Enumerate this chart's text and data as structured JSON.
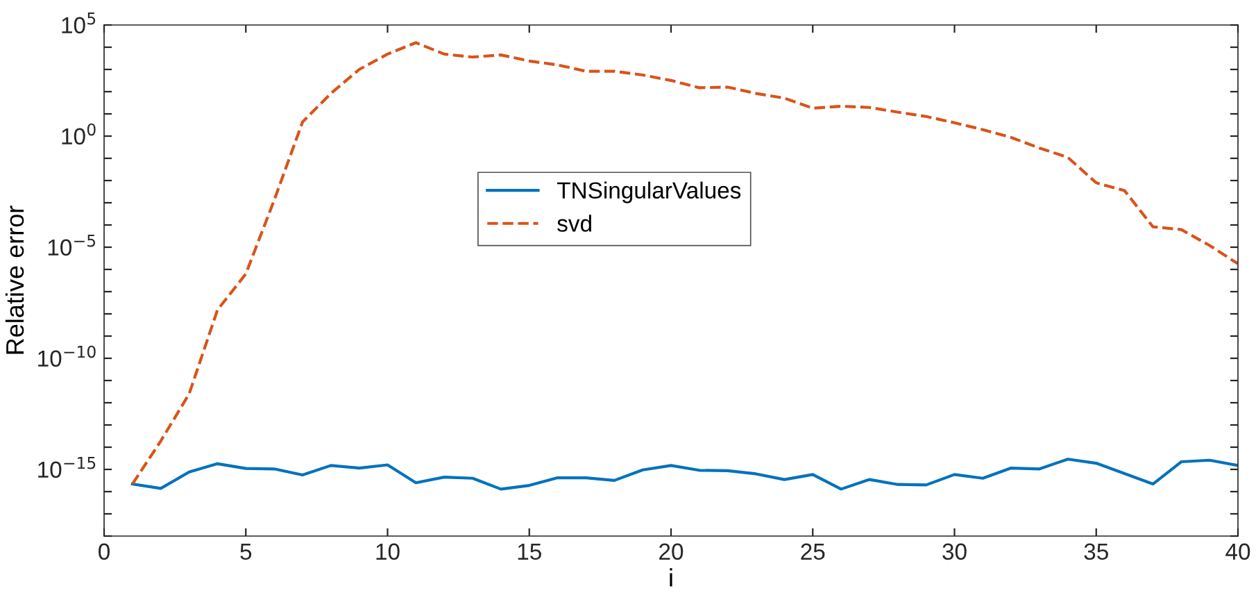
{
  "chart_data": {
    "type": "line",
    "xlabel": "i",
    "ylabel": "Relative error",
    "log": "y",
    "x": [
      1,
      2,
      3,
      4,
      5,
      6,
      7,
      8,
      9,
      10,
      11,
      12,
      13,
      14,
      15,
      16,
      17,
      18,
      19,
      20,
      21,
      22,
      23,
      24,
      25,
      26,
      27,
      28,
      29,
      30,
      31,
      32,
      33,
      34,
      35,
      36,
      37,
      38,
      39,
      40
    ],
    "series": [
      {
        "name": "TNSingularValues",
        "color": "#0072bd",
        "line_style": "solid",
        "values": [
          2.2e-16,
          1.4e-16,
          7.6e-16,
          1.8e-15,
          1.1e-15,
          1.05e-15,
          5.6e-16,
          1.5e-15,
          1.15e-15,
          1.6e-15,
          2.5e-16,
          4.5e-16,
          4e-16,
          1.3e-16,
          1.9e-16,
          4.2e-16,
          4.2e-16,
          3.2e-16,
          9.5e-16,
          1.5e-15,
          9.1e-16,
          8.7e-16,
          6.3e-16,
          3.5e-16,
          5.9e-16,
          1.3e-16,
          3.5e-16,
          2.1e-16,
          2e-16,
          5.9e-16,
          4e-16,
          1.15e-15,
          1.05e-15,
          2.9e-15,
          1.9e-15,
          6.5e-16,
          2.2e-16,
          2.2e-15,
          2.6e-15,
          1.5e-15
        ]
      },
      {
        "name": "svd",
        "color": "#d95319",
        "line_style": "dashed",
        "values": [
          2.2e-16,
          1.9e-14,
          2.5e-12,
          1.5e-08,
          6.3e-07,
          0.0013,
          4.3,
          83,
          1000,
          4900,
          16000,
          4900,
          3600,
          4500,
          2400,
          1600,
          830,
          830,
          560,
          320,
          150,
          160,
          83,
          51,
          18,
          22,
          19.5,
          12,
          7.6,
          4.0,
          1.95,
          0.87,
          0.29,
          0.11,
          0.0079,
          0.0035,
          8.3e-05,
          6.2e-05,
          1.2e-05,
          1.8e-06
        ]
      }
    ],
    "xlim": [
      0,
      40
    ],
    "xticks": [
      0,
      5,
      10,
      15,
      20,
      25,
      30,
      35,
      40
    ],
    "ylim": [
      1e-18,
      100000.0
    ],
    "yticks": [
      {
        "value": 1e-18,
        "label": null
      },
      {
        "value": 1e-17,
        "label": null
      },
      {
        "value": 1e-16,
        "label": null
      },
      {
        "value": 1e-15,
        "label": "10$^{−15}$"
      },
      {
        "value": 1e-14,
        "label": null
      },
      {
        "value": 1e-13,
        "label": null
      },
      {
        "value": 1e-12,
        "label": null
      },
      {
        "value": 1e-11,
        "label": null
      },
      {
        "value": 1e-10,
        "label": "10$^{−10}$"
      },
      {
        "value": 1e-09,
        "label": null
      },
      {
        "value": 1e-08,
        "label": null
      },
      {
        "value": 1e-07,
        "label": null
      },
      {
        "value": 1e-06,
        "label": null
      },
      {
        "value": 1e-05,
        "label": "10$^{−5}$"
      },
      {
        "value": 0.0001,
        "label": null
      },
      {
        "value": 0.001,
        "label": null
      },
      {
        "value": 0.01,
        "label": null
      },
      {
        "value": 0.1,
        "label": null
      },
      {
        "value": 1,
        "label": "10$^{0}$"
      },
      {
        "value": 10,
        "label": null
      },
      {
        "value": 100,
        "label": null
      },
      {
        "value": 1000,
        "label": null
      },
      {
        "value": 10000,
        "label": null
      },
      {
        "value": 100000,
        "label": "10$^{5}$"
      }
    ],
    "legend": "center",
    "grid": false,
    "marker": "none"
  }
}
